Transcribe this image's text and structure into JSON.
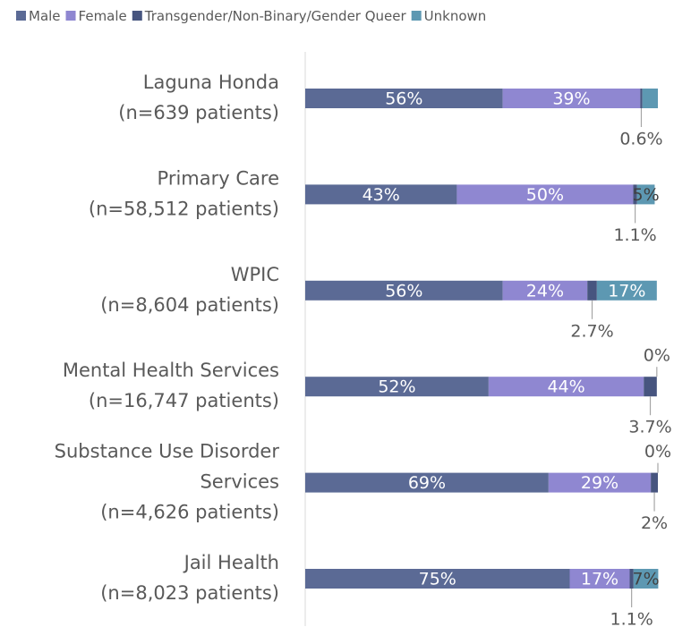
{
  "chart_data": {
    "type": "stacked-barh",
    "categories": [
      [
        "Laguna Honda",
        "(n=639 patients)"
      ],
      [
        "Primary Care",
        "(n=58,512 patients)"
      ],
      [
        "WPIC",
        "(n=8,604 patients)"
      ],
      [
        "Mental Health Services",
        "(n=16,747 patients)"
      ],
      [
        "Substance Use Disorder",
        "Services",
        "(n=4,626 patients)"
      ],
      [
        "Jail Health",
        "(n=8,023 patients)"
      ]
    ],
    "series": [
      {
        "name": "Male",
        "color": "#5b6a95",
        "values": [
          56,
          43,
          56,
          52,
          69,
          75
        ],
        "value_labels": [
          "56%",
          "43%",
          "56%",
          "52%",
          "69%",
          "75%"
        ]
      },
      {
        "name": "Female",
        "color": "#8f87d1",
        "values": [
          39,
          50,
          24,
          44,
          29,
          17
        ],
        "value_labels": [
          "39%",
          "50%",
          "24%",
          "44%",
          "29%",
          "17%"
        ]
      },
      {
        "name": "Transgender/Non-Binary/Gender Queer",
        "color": "#47557f",
        "values": [
          0.6,
          1.1,
          2.7,
          3.7,
          2,
          1.1
        ],
        "value_labels": [
          "0.6%",
          "1.1%",
          "2.7%",
          "3.7%",
          "2%",
          "1.1%"
        ]
      },
      {
        "name": "Unknown",
        "color": "#5d98b2",
        "values": [
          4.4,
          5,
          17,
          0,
          0,
          7
        ],
        "value_labels": [
          null,
          "5%",
          "17%",
          "0%",
          "0%",
          "7%"
        ]
      }
    ],
    "xlim": [
      0,
      100
    ]
  }
}
